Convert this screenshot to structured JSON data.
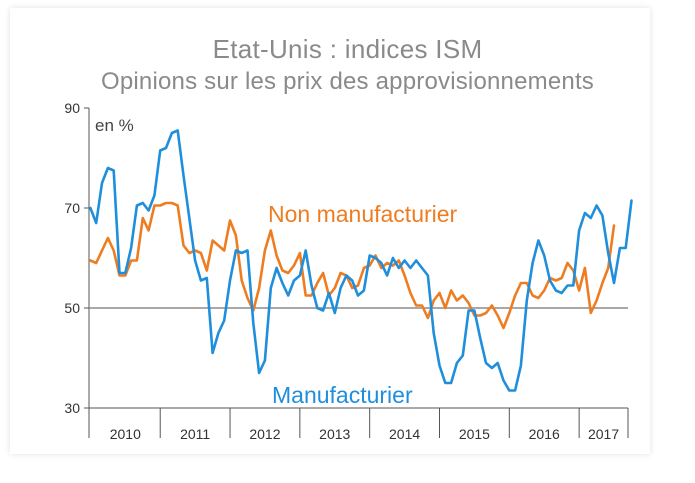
{
  "title": "Etat-Unis : indices ISM",
  "subtitle": "Opinions sur les prix des approvisionnements",
  "chart_data": {
    "type": "line",
    "title": "Etat-Unis : indices ISM",
    "subtitle": "Opinions sur les prix des approvisionnements",
    "unit_label": "en %",
    "xlabel": "",
    "ylabel": "",
    "x_range": [
      2009.98,
      2017.7
    ],
    "ylim": [
      30,
      90
    ],
    "yticks": [
      "30",
      "50",
      "70",
      "90"
    ],
    "year_labels": [
      "2010",
      "2011",
      "2012",
      "2013",
      "2014",
      "2015",
      "2016",
      "2017"
    ],
    "reference_line": 50,
    "grid": false,
    "colors": {
      "manufacturier": "#1f8fdc",
      "non_manufacturier": "#ee7d22",
      "reference": "#8c8c8c",
      "axis": "#555555"
    },
    "series": [
      {
        "name": "Manufacturier",
        "color": "#1f8fdc",
        "start": "2010-01",
        "values": [
          70,
          67,
          75,
          78,
          77.5,
          57,
          57,
          62,
          70.5,
          71,
          69.5,
          72.5,
          81.5,
          82,
          85,
          85.5,
          76.5,
          68,
          59.5,
          55.5,
          56,
          41,
          45,
          47.5,
          55.5,
          61.5,
          61,
          61.5,
          47,
          37,
          39.5,
          54,
          58,
          55,
          52.5,
          55.5,
          56.5,
          61.5,
          54.5,
          50,
          49.5,
          53,
          49,
          54,
          56.5,
          55.5,
          52.5,
          53.5,
          60.5,
          60,
          59,
          56.5,
          60,
          58,
          59.5,
          58,
          59.5,
          58,
          56.5,
          45,
          38.5,
          35,
          35,
          39,
          40.5,
          49.5,
          49.5,
          44,
          39,
          38,
          39,
          35.5,
          33.5,
          33.5,
          38.5,
          51.5,
          59,
          63.5,
          60.5,
          55.5,
          53.5,
          53,
          54.5,
          54.5,
          65.5,
          69,
          68,
          70.5,
          68.5,
          61,
          55,
          62,
          62,
          71.5
        ]
      },
      {
        "name": "Non manufacturier",
        "color": "#ee7d22",
        "start": "2010-01",
        "values": [
          59.5,
          59,
          61.5,
          64,
          61.5,
          56.5,
          56.5,
          59.5,
          59.5,
          68,
          65.5,
          70.5,
          70.5,
          71,
          71,
          70.5,
          62.5,
          61,
          61.5,
          61,
          57.5,
          63.5,
          62.5,
          61.5,
          67.5,
          64.5,
          55.5,
          52,
          49.5,
          54,
          61.5,
          65.5,
          60.5,
          57.5,
          57,
          58.5,
          61,
          52.5,
          52.5,
          55,
          57,
          52.5,
          54,
          57,
          56.5,
          54,
          54.5,
          58,
          58.5,
          60.5,
          58,
          59,
          58.5,
          59.5,
          56.5,
          53,
          50.5,
          50.5,
          48,
          51.5,
          53,
          50,
          53.5,
          51.5,
          52.5,
          51,
          48.5,
          48.5,
          49,
          50.5,
          48.5,
          46,
          49,
          52.5,
          55,
          55,
          52.5,
          52,
          53.5,
          56,
          55.5,
          56,
          59,
          57.5,
          53.5,
          58,
          49,
          51.5,
          55,
          58,
          66.5
        ]
      }
    ],
    "annotations": [
      {
        "text": "Non manufacturier",
        "series": "Non manufacturier"
      },
      {
        "text": "Manufacturier",
        "series": "Manufacturier"
      }
    ]
  }
}
